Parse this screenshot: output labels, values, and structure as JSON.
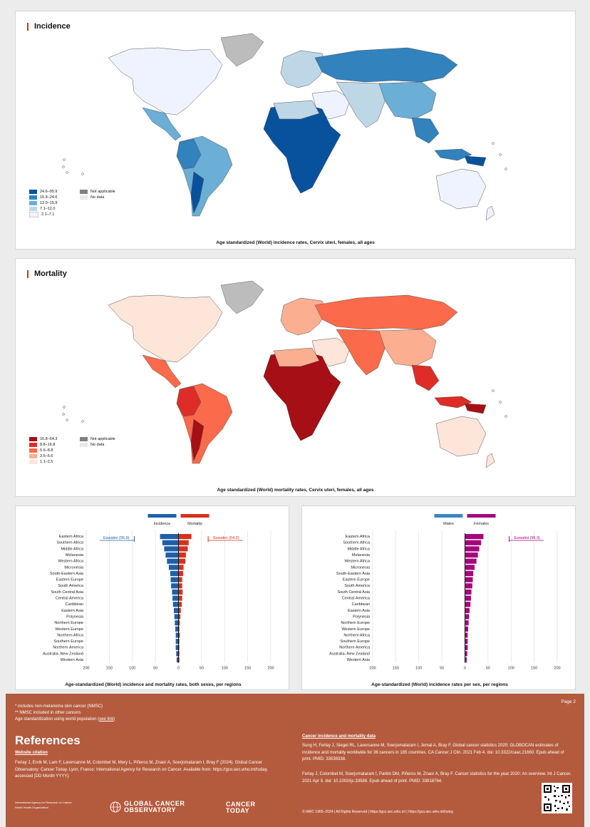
{
  "incidence": {
    "title": "Incidence",
    "caption": "Age standardized (World) incidence rates, Cervix uteri, females, all ages",
    "legend": [
      {
        "label": "24.6–95.9",
        "color": "#08519c"
      },
      {
        "label": "15.9–24.6",
        "color": "#3182bd"
      },
      {
        "label": "12.0–15.9",
        "color": "#6baed6"
      },
      {
        "label": "7.1–12.0",
        "color": "#bdd7e7"
      },
      {
        "label": "2.1–7.1",
        "color": "#eff3ff"
      }
    ],
    "legend_other": [
      {
        "label": "Not applicable",
        "color": "#808080"
      },
      {
        "label": "No data",
        "color": "#e8e8e8"
      }
    ]
  },
  "mortality": {
    "title": "Mortality",
    "caption": "Age standardized (World) mortality rates, Cervix uteri, females, all ages",
    "legend": [
      {
        "label": "16.8–64.3",
        "color": "#a50f15"
      },
      {
        "label": "8.8–16.8",
        "color": "#de2d26"
      },
      {
        "label": "5.6–8.8",
        "color": "#fb6a4a"
      },
      {
        "label": "2.5–5.6",
        "color": "#fcae91"
      },
      {
        "label": "1.1–2.5",
        "color": "#fee5d9"
      }
    ],
    "legend_other": [
      {
        "label": "Not applicable",
        "color": "#808080"
      },
      {
        "label": "No data",
        "color": "#e8e8e8"
      }
    ]
  },
  "chart_data": [
    {
      "type": "bar",
      "orientation": "horizontal-butterfly",
      "title": "Age-standardized (World) incidence and mortality rates, both sexes, per regions",
      "categories": [
        "Eastern Africa",
        "Southern Africa",
        "Middle Africa",
        "Melanesia",
        "Western Africa",
        "Micronesia",
        "South-Eastern Asia",
        "Eastern Europe",
        "South America",
        "South Central Asia",
        "Central America",
        "Caribbean",
        "Eastern Asia",
        "Polynesia",
        "Northern Europe",
        "Western Europe",
        "Northern Africa",
        "Southern Europe",
        "Northern America",
        "Australia–New Zealand",
        "Western Asia"
      ],
      "series": [
        {
          "name": "Incidence",
          "color": "#1f5fa8",
          "values": [
            40,
            35,
            31,
            28,
            25,
            21,
            18,
            17,
            16,
            14,
            13,
            12,
            10,
            9,
            8,
            7,
            6,
            6,
            6,
            5,
            4
          ]
        },
        {
          "name": "Mortality",
          "color": "#d7301f",
          "values": [
            28,
            22,
            20,
            16,
            15,
            11,
            10,
            8,
            8,
            9,
            8,
            7,
            5,
            4,
            3,
            2,
            3,
            2,
            2,
            2,
            2
          ]
        }
      ],
      "annotations": [
        {
          "label": "Eswatini (95.9)",
          "value": 95.9,
          "side": "left",
          "color": "#1f5fa8"
        },
        {
          "label": "Eswatini (64.3)",
          "value": 64.3,
          "side": "right",
          "color": "#d7301f"
        }
      ],
      "xticks": [
        "200",
        "150",
        "100",
        "50",
        "0",
        "50",
        "100",
        "150",
        "200"
      ],
      "xlim": [
        -200,
        200
      ]
    },
    {
      "type": "bar",
      "orientation": "horizontal-butterfly",
      "title": "Age-standardized (World) incidence rates per sex, per regions",
      "categories": [
        "Eastern Africa",
        "Southern Africa",
        "Middle Africa",
        "Melanesia",
        "Western Africa",
        "Micronesia",
        "South-Eastern Asia",
        "Eastern Europe",
        "South America",
        "South Central Asia",
        "Central America",
        "Caribbean",
        "Eastern Asia",
        "Polynesia",
        "Northern Europe",
        "Western Europe",
        "Northern Africa",
        "Southern Europe",
        "Northern America",
        "Australia–New Zealand",
        "Western Asia"
      ],
      "series": [
        {
          "name": "Males",
          "color": "#3a88c2",
          "values": [
            0,
            0,
            0,
            0,
            0,
            0,
            0,
            0,
            0,
            0,
            0,
            0,
            0,
            0,
            0,
            0,
            0,
            0,
            0,
            0,
            0
          ]
        },
        {
          "name": "Females",
          "color": "#a5067a",
          "values": [
            40,
            35,
            31,
            28,
            25,
            21,
            18,
            17,
            16,
            14,
            13,
            12,
            10,
            9,
            8,
            7,
            6,
            6,
            6,
            5,
            4
          ]
        }
      ],
      "annotations": [
        {
          "label": "Eswatini (95.9)",
          "value": 95.9,
          "side": "right",
          "color": "#a5067a"
        }
      ],
      "xticks": [
        "200",
        "150",
        "100",
        "50",
        "0",
        "50",
        "100",
        "150",
        "200"
      ],
      "xlim": [
        -200,
        200
      ]
    }
  ],
  "footer": {
    "page": "Page 2",
    "notes": [
      "* includes non-melanoma skin cancer (NMSC)",
      "** NMSC included in other cancers",
      "Age standardization using world population ("
    ],
    "see_link": "see link",
    "notes_end": ")",
    "references_title": "References",
    "website_citation_title": "Website citation",
    "website_citation": "Ferlay J, Ervik M, Lam F, Laversanne M, Colombet M, Mery L, Piñeros M, Znaor A, Soerjomataram I, Bray F (2024). Global Cancer Observatory: Cancer Today. Lyon, France: International Agency for Research on Cancer. Available from: https://gco.iarc.who.int/today, accessed [DD Month YYYY].",
    "cancer_data_title": "Cancer incidence and mortality data",
    "cancer_data_1": "Sung H, Ferlay J, Siegel RL, Laversanne M, Soerjomataram I, Jemal A, Bray F. Global cancer statistics 2020: GLOBOCAN estimates of incidence and mortality worldwide for 36 cancers in 185 countries. CA Cancer J Clin. 2021 Feb 4. doi: 10.3322/caac.21660. Epub ahead of print. PMID: 33538338.",
    "cancer_data_2": "Ferlay J, Colombet M, Soerjomataram I, Parkin DM, Piñeros M, Znaor A, Bray F. Cancer statistics for the year 2020: An overview. Int J Cancer. 2021 Apr 5. doi: 10.1002/ijc.33588. Epub ahead of print. PMID: 33818764.",
    "iarc_logo": "International Agency for Research on Cancer",
    "who_logo": "World Health Organization",
    "gco_logo_1": "GLOBAL CANCER",
    "gco_logo_2": "OBSERVATORY",
    "today_logo_1": "CANCER",
    "today_logo_2": "TODAY",
    "copyright": "© IARC 1965–2024 | All Rights Reserved | https://gco.iarc.who.int | https://gco.iarc.who.int/today"
  }
}
